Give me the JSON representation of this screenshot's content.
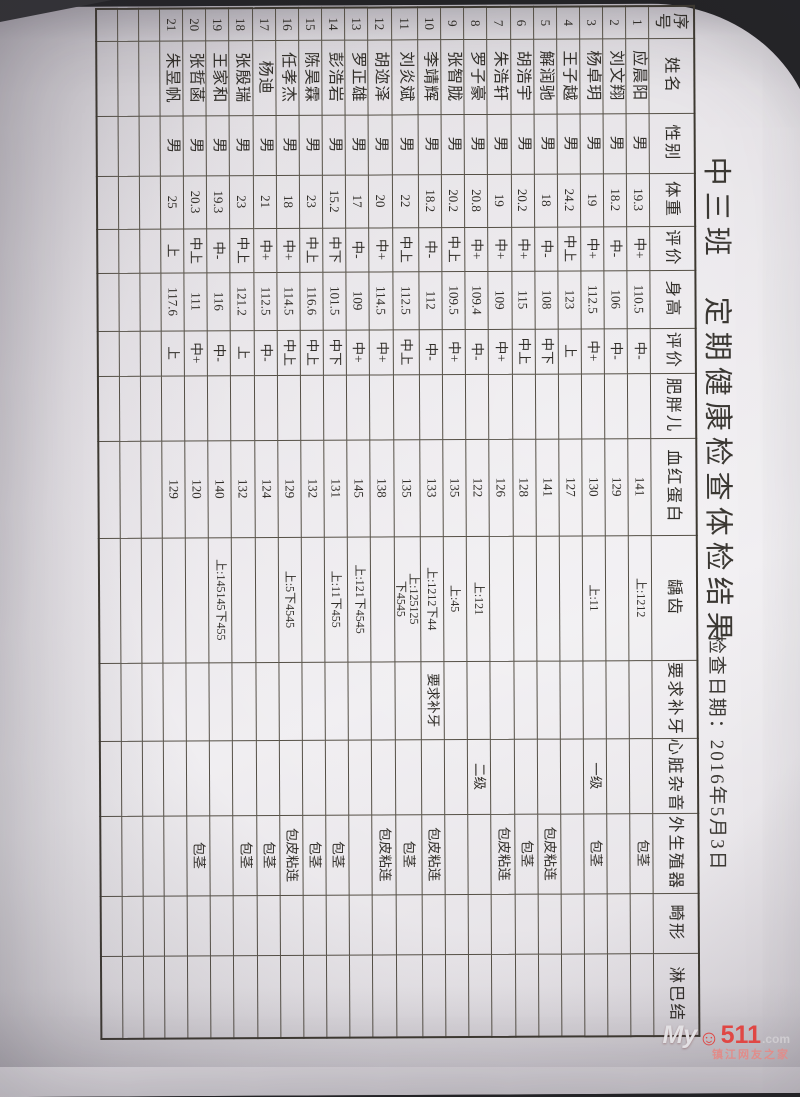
{
  "title": "中三班　定期健康检查体检结果",
  "check_date": "检查日期：2016年5月3日",
  "columns": [
    "序号",
    "姓名",
    "性别",
    "体重",
    "评价",
    "身高",
    "评价",
    "肥胖儿",
    "血红蛋白",
    "龋齿",
    "要求补牙",
    "心脏杂音",
    "外生殖器",
    "畸形",
    "淋巴结"
  ],
  "rows": [
    [
      "1",
      "应晨阳",
      "男",
      "19.3",
      "中+",
      "110.5",
      "中-",
      "",
      "141",
      "上:1212",
      "",
      "",
      "包茎",
      "",
      ""
    ],
    [
      "2",
      "刘文翔",
      "男",
      "18.2",
      "中-",
      "106",
      "中-",
      "",
      "129",
      "",
      "",
      "",
      "",
      "",
      ""
    ],
    [
      "3",
      "杨卓玥",
      "男",
      "19",
      "中+",
      "112.5",
      "中+",
      "",
      "130",
      "上:11",
      "",
      "一级",
      "包茎",
      "",
      ""
    ],
    [
      "4",
      "王子越",
      "男",
      "24.2",
      "中上",
      "123",
      "上",
      "",
      "127",
      "",
      "",
      "",
      "",
      "",
      ""
    ],
    [
      "5",
      "解润驰",
      "男",
      "18",
      "中-",
      "108",
      "中下",
      "",
      "141",
      "",
      "",
      "",
      "包皮粘连",
      "",
      ""
    ],
    [
      "6",
      "胡浩宇",
      "男",
      "20.2",
      "中+",
      "115",
      "中上",
      "",
      "128",
      "",
      "",
      "",
      "包茎",
      "",
      ""
    ],
    [
      "7",
      "朱浩轩",
      "男",
      "19",
      "中+",
      "109",
      "中+",
      "",
      "126",
      "",
      "",
      "",
      "包皮粘连",
      "",
      ""
    ],
    [
      "8",
      "罗子豪",
      "男",
      "20.8",
      "中+",
      "109.4",
      "中-",
      "",
      "122",
      "上:121",
      "",
      "二级",
      "",
      "",
      ""
    ],
    [
      "9",
      "张智胧",
      "男",
      "20.2",
      "中上",
      "109.5",
      "中+",
      "",
      "135",
      "上:45",
      "",
      "",
      "",
      "",
      ""
    ],
    [
      "10",
      "李靖辉",
      "男",
      "18.2",
      "中-",
      "112",
      "中-",
      "",
      "133",
      "上:1212下44",
      "要求补牙",
      "",
      "包皮粘连",
      "",
      ""
    ],
    [
      "11",
      "刘炎斌",
      "男",
      "22",
      "中上",
      "112.5",
      "中上",
      "",
      "135",
      "上:125125\n下4545",
      "",
      "",
      "包茎",
      "",
      ""
    ],
    [
      "12",
      "胡迩泽",
      "男",
      "20",
      "中+",
      "114.5",
      "中+",
      "",
      "138",
      "",
      "",
      "",
      "包皮粘连",
      "",
      ""
    ],
    [
      "13",
      "罗正雄",
      "男",
      "17",
      "中-",
      "109",
      "中+",
      "",
      "145",
      "上:121下4545",
      "",
      "",
      "",
      "",
      ""
    ],
    [
      "14",
      "彭浩岩",
      "男",
      "15.2",
      "中下",
      "101.5",
      "中下",
      "",
      "131",
      "上:11下455",
      "",
      "",
      "包茎",
      "",
      ""
    ],
    [
      "15",
      "陈昊霖",
      "男",
      "23",
      "中上",
      "116.6",
      "中上",
      "",
      "132",
      "",
      "",
      "",
      "包茎",
      "",
      ""
    ],
    [
      "16",
      "任孝杰",
      "男",
      "18",
      "中+",
      "114.5",
      "中上",
      "",
      "129",
      "上:5下4545",
      "",
      "",
      "包皮粘连",
      "",
      ""
    ],
    [
      "17",
      "杨迪",
      "男",
      "21",
      "中+",
      "112.5",
      "中-",
      "",
      "124",
      "",
      "",
      "",
      "包茎",
      "",
      ""
    ],
    [
      "18",
      "张殷瑞",
      "男",
      "23",
      "中上",
      "121.2",
      "上",
      "",
      "132",
      "",
      "",
      "",
      "包茎",
      "",
      ""
    ],
    [
      "19",
      "王家和",
      "男",
      "19.3",
      "中-",
      "116",
      "中-",
      "",
      "140",
      "上:145145下455",
      "",
      "",
      "",
      "",
      ""
    ],
    [
      "20",
      "张哲菡",
      "男",
      "20.3",
      "中上",
      "111",
      "中+",
      "",
      "120",
      "",
      "",
      "",
      "包茎",
      "",
      ""
    ],
    [
      "21",
      "朱昱帆",
      "男",
      "25",
      "上",
      "117.6",
      "上",
      "",
      "129",
      "",
      "",
      "",
      "",
      "",
      ""
    ],
    [
      "",
      "",
      "",
      "",
      "",
      "",
      "",
      "",
      "",
      "",
      "",
      "",
      "",
      "",
      ""
    ],
    [
      "",
      "",
      "",
      "",
      "",
      "",
      "",
      "",
      "",
      "",
      "",
      "",
      "",
      "",
      ""
    ],
    [
      "",
      "",
      "",
      "",
      "",
      "",
      "",
      "",
      "",
      "",
      "",
      "",
      "",
      "",
      ""
    ]
  ],
  "watermark": {
    "my": "My",
    "smiley_icon": "☺",
    "number": "511",
    "com": ".com",
    "tagline": "镇江网友之家"
  }
}
